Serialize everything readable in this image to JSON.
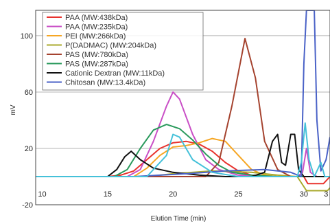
{
  "chart_data": {
    "type": "line",
    "title": "",
    "xlabel": "Elution Time (min)",
    "ylabel": "mV",
    "xlim": [
      9.5,
      32
    ],
    "ylim": [
      -20,
      118
    ],
    "xticks": [
      10,
      15,
      20,
      25,
      30,
      3
    ],
    "yticks": [
      -20,
      20,
      60,
      100
    ],
    "grid": "horizontal",
    "legend": "top-left",
    "series": [
      {
        "name": "PAA (MW:438kDa)",
        "color": "#e8322d",
        "points": [
          [
            9.5,
            0
          ],
          [
            15,
            0
          ],
          [
            16,
            1
          ],
          [
            17,
            4
          ],
          [
            18,
            12
          ],
          [
            19,
            20
          ],
          [
            20,
            24
          ],
          [
            21,
            25
          ],
          [
            22,
            23
          ],
          [
            23,
            18
          ],
          [
            24,
            10
          ],
          [
            25,
            4
          ],
          [
            26,
            1
          ],
          [
            28,
            0
          ],
          [
            30,
            0
          ],
          [
            30.3,
            -5
          ],
          [
            31.5,
            -5
          ],
          [
            32,
            0
          ]
        ]
      },
      {
        "name": "PAA (MW:235kDa)",
        "color": "#c94fc6",
        "points": [
          [
            9.5,
            0
          ],
          [
            16.5,
            0
          ],
          [
            17.5,
            5
          ],
          [
            18.5,
            25
          ],
          [
            19.5,
            50
          ],
          [
            20,
            60
          ],
          [
            20.5,
            55
          ],
          [
            21.5,
            30
          ],
          [
            22.5,
            12
          ],
          [
            23.5,
            5
          ],
          [
            25,
            1
          ],
          [
            27,
            0
          ],
          [
            29.5,
            0
          ],
          [
            29.9,
            3
          ],
          [
            30.2,
            20
          ],
          [
            30.5,
            3
          ],
          [
            31,
            0
          ],
          [
            32,
            0
          ]
        ]
      },
      {
        "name": "PEI (MW:266kDa)",
        "color": "#f6a623",
        "points": [
          [
            9.5,
            0
          ],
          [
            17,
            0
          ],
          [
            18,
            6
          ],
          [
            19,
            15
          ],
          [
            20,
            21
          ],
          [
            21,
            22
          ],
          [
            22,
            24
          ],
          [
            23,
            27
          ],
          [
            24,
            25
          ],
          [
            25,
            15
          ],
          [
            26,
            5
          ],
          [
            27,
            1
          ],
          [
            28,
            0
          ],
          [
            32,
            0
          ]
        ]
      },
      {
        "name": "P(DADMAC) (MW:204kDa)",
        "color": "#a9a92b",
        "points": [
          [
            9.5,
            0
          ],
          [
            18,
            0
          ],
          [
            20,
            2
          ],
          [
            23,
            4
          ],
          [
            26,
            3
          ],
          [
            28,
            1
          ],
          [
            29.5,
            0
          ],
          [
            30.2,
            -10
          ],
          [
            31.8,
            -10
          ],
          [
            32,
            -8
          ]
        ]
      },
      {
        "name": "PAS (MW:780kDa)",
        "color": "#a5432f",
        "points": [
          [
            9.5,
            0
          ],
          [
            22.5,
            0
          ],
          [
            23.5,
            10
          ],
          [
            24.5,
            50
          ],
          [
            25.5,
            98
          ],
          [
            26.3,
            70
          ],
          [
            27,
            25
          ],
          [
            28,
            5
          ],
          [
            29,
            0
          ],
          [
            32,
            0
          ]
        ]
      },
      {
        "name": "PAS (MW:287kDa)",
        "color": "#2a9a5c",
        "points": [
          [
            9.5,
            0
          ],
          [
            15.5,
            0
          ],
          [
            16.5,
            5
          ],
          [
            17.5,
            20
          ],
          [
            18.5,
            33
          ],
          [
            19.5,
            37
          ],
          [
            20.5,
            34
          ],
          [
            21.5,
            26
          ],
          [
            22.5,
            16
          ],
          [
            23.5,
            8
          ],
          [
            24.5,
            3
          ],
          [
            26,
            1
          ],
          [
            28,
            0
          ],
          [
            32,
            0
          ]
        ]
      },
      {
        "name": "Cationic Dextran (MW:11kDa)",
        "color": "#111111",
        "points": [
          [
            9.5,
            0
          ],
          [
            15,
            0
          ],
          [
            15.7,
            5
          ],
          [
            16.3,
            14
          ],
          [
            16.8,
            18
          ],
          [
            17.5,
            12
          ],
          [
            18.5,
            6
          ],
          [
            20,
            3
          ],
          [
            22,
            1
          ],
          [
            24,
            0
          ],
          [
            26,
            0
          ],
          [
            27,
            3
          ],
          [
            27.6,
            25
          ],
          [
            28,
            30
          ],
          [
            28.3,
            10
          ],
          [
            28.6,
            8
          ],
          [
            29,
            30
          ],
          [
            29.3,
            30
          ],
          [
            29.6,
            5
          ],
          [
            30,
            0
          ],
          [
            32,
            0
          ]
        ]
      },
      {
        "name": "Chitosan (MW:13.4kDa)",
        "color": "#4a62c7",
        "points": [
          [
            9.5,
            0
          ],
          [
            17,
            0
          ],
          [
            19,
            1
          ],
          [
            21,
            2
          ],
          [
            24,
            4
          ],
          [
            27,
            5
          ],
          [
            29,
            3
          ],
          [
            29.8,
            0
          ],
          [
            30,
            80
          ],
          [
            30.2,
            118
          ],
          [
            30.8,
            118
          ],
          [
            31,
            40
          ],
          [
            31.3,
            4
          ],
          [
            31.7,
            12
          ],
          [
            32,
            28
          ]
        ]
      },
      {
        "name": "",
        "color": "#45c1d9",
        "points": [
          [
            9.5,
            0
          ],
          [
            18,
            0
          ],
          [
            19.5,
            15
          ],
          [
            20,
            30
          ],
          [
            20.5,
            28
          ],
          [
            21.5,
            12
          ],
          [
            23,
            3
          ],
          [
            25,
            0
          ],
          [
            29.5,
            0
          ],
          [
            29.8,
            10
          ],
          [
            30.1,
            38
          ],
          [
            30.4,
            12
          ],
          [
            30.8,
            0
          ],
          [
            31.3,
            10
          ],
          [
            31.6,
            0
          ],
          [
            32,
            0
          ]
        ]
      }
    ]
  }
}
